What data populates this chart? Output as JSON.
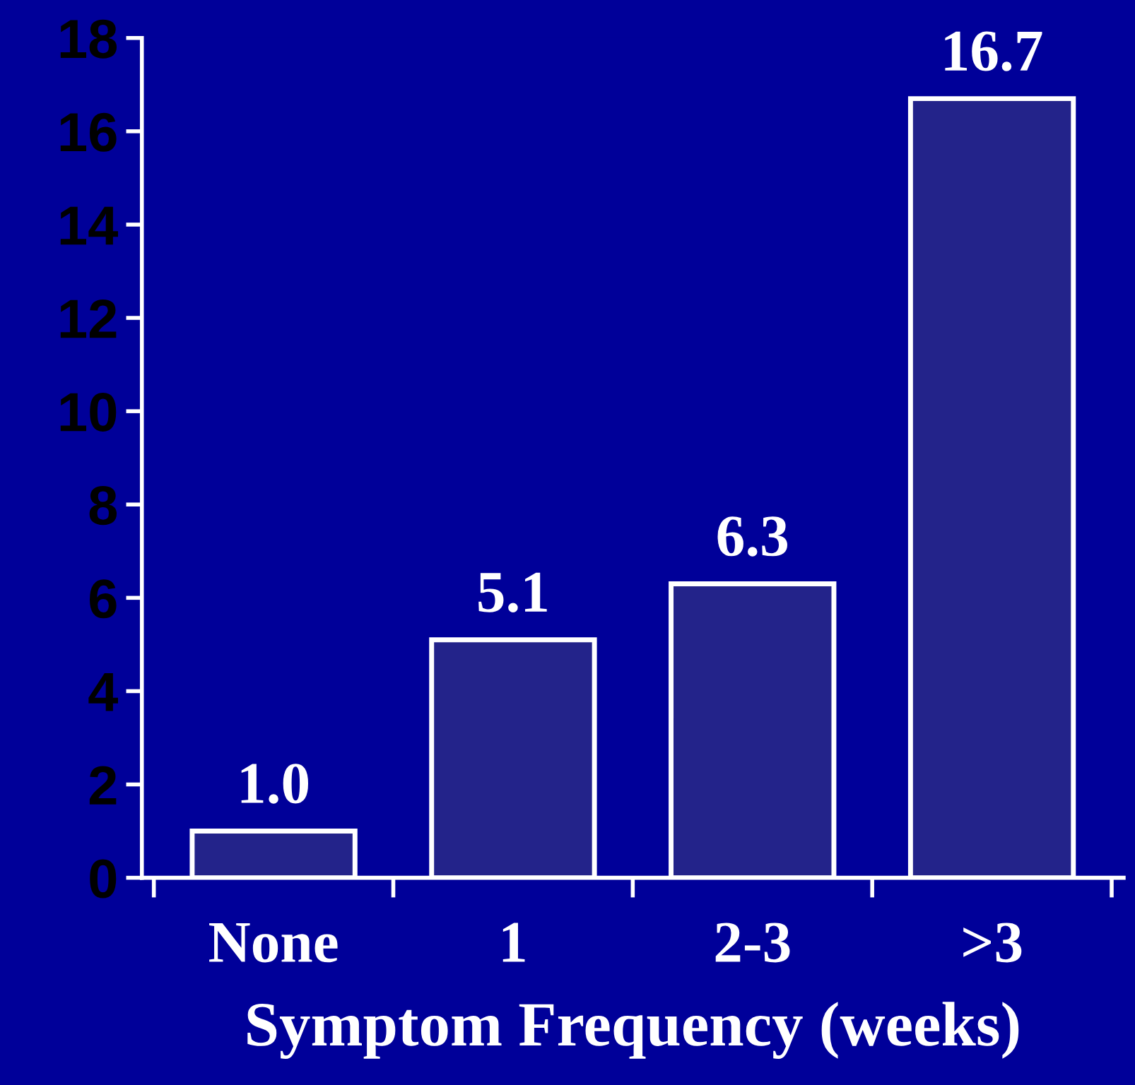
{
  "chart_data": {
    "type": "bar",
    "xlabel": "Symptom Frequency (weeks)",
    "categories": [
      "None",
      "1",
      "2-3",
      ">3"
    ],
    "values": [
      1.0,
      5.1,
      6.3,
      16.7
    ],
    "color": "#23238a",
    "ylim": [
      0,
      18
    ],
    "yticks": [
      0,
      2,
      4,
      6,
      8,
      10,
      12,
      14,
      16,
      18
    ],
    "value_labels": [
      "1.0",
      "5.1",
      "6.3",
      "16.7"
    ]
  }
}
